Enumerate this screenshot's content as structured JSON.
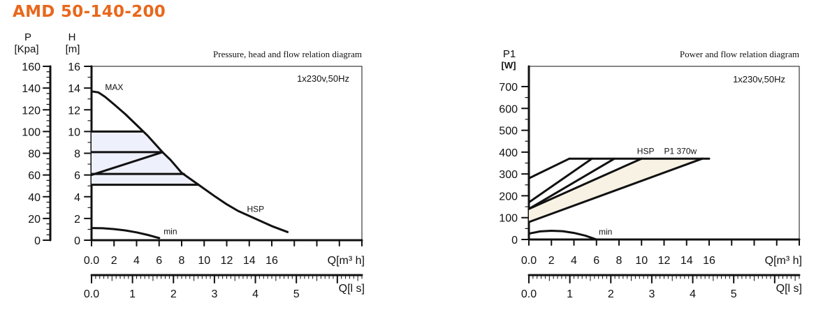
{
  "page": {
    "title": "AMD 50-140-200"
  },
  "chart_data": [
    {
      "type": "line",
      "title": "Pressure, head and flow relation diagram",
      "note": "1x230v,50Hz",
      "ylabel_pressure": {
        "name": "P",
        "unit": "[Kpa]"
      },
      "ylabel_head": {
        "name": "H",
        "unit": "[m]"
      },
      "xlabel_flow_m3h": "Q[m³ h]",
      "xlabel_flow_ls": "Q[l s]",
      "pressure_ticks": [
        "160",
        "140",
        "120",
        "100",
        "80",
        "60",
        "40",
        "20",
        "0"
      ],
      "head_ticks": [
        "16",
        "14",
        "12",
        "10",
        "8",
        "6",
        "4",
        "2",
        "0"
      ],
      "q_m3h_ticks": [
        "0.0",
        "2",
        "4",
        "6",
        "8",
        "10",
        "12",
        "14",
        "16"
      ],
      "q_ls_ticks": [
        "0.0",
        "1",
        "2",
        "3",
        "4",
        "5"
      ],
      "ylim": [
        0,
        16
      ],
      "xlim": [
        0,
        24
      ],
      "series": [
        {
          "name": "MAX",
          "x": [
            0,
            0.6,
            1.2,
            2,
            3,
            4,
            5,
            6.3,
            7,
            8,
            9.5
          ],
          "y": [
            13.7,
            13.6,
            13.2,
            12.5,
            11.6,
            10.6,
            9.6,
            8.1,
            7.4,
            6.2,
            5.1
          ]
        },
        {
          "name": "HSP",
          "x": [
            9.5,
            11,
            12,
            13,
            14.5,
            16,
            17.4
          ],
          "y": [
            5.1,
            4,
            3.3,
            2.7,
            2,
            1.3,
            0.75
          ]
        },
        {
          "name": "min",
          "x": [
            0,
            1,
            2,
            3,
            4,
            5,
            6
          ],
          "y": [
            1.12,
            1.1,
            1.02,
            0.9,
            0.72,
            0.48,
            0.2
          ]
        }
      ],
      "constant_pressure_lines": [
        {
          "x": [
            0,
            4.5
          ],
          "y": [
            10,
            10
          ]
        },
        {
          "x": [
            0,
            6.3
          ],
          "y": [
            8.1,
            8.1
          ]
        },
        {
          "x": [
            0,
            8.2
          ],
          "y": [
            6.1,
            6.1
          ]
        },
        {
          "x": [
            0,
            9.5
          ],
          "y": [
            5.1,
            5.1
          ]
        }
      ],
      "proportional_pressure_line": {
        "x": [
          0,
          6.3
        ],
        "y": [
          6,
          8.1
        ]
      },
      "labels": {
        "max": "MAX",
        "hsp": "HSP",
        "min": "min"
      }
    },
    {
      "type": "line",
      "title": "Power and flow relation diagram",
      "note": "1x230v,50Hz",
      "ylabel": {
        "name": "P1",
        "unit": "[W]"
      },
      "xlabel_flow_m3h": "Q[m³ h]",
      "xlabel_flow_ls": "Q[l s]",
      "power_ticks": [
        "700",
        "600",
        "500",
        "400",
        "300",
        "200",
        "100",
        "0"
      ],
      "q_m3h_ticks": [
        "0.0",
        "2",
        "4",
        "6",
        "8",
        "10",
        "12",
        "14",
        "16"
      ],
      "q_ls_ticks": [
        "0.0",
        "1",
        "2",
        "3",
        "4",
        "5"
      ],
      "ylim": [
        0,
        700
      ],
      "xlim": [
        0,
        24
      ],
      "series": [
        {
          "name": "P1 370w",
          "x": [
            3.6,
            16
          ],
          "y": [
            370,
            370
          ]
        },
        {
          "name": "min",
          "x": [
            0,
            1,
            2,
            3,
            4,
            5,
            6
          ],
          "y": [
            27,
            37,
            40,
            38,
            30,
            18,
            0
          ]
        }
      ],
      "rising_lines": [
        {
          "x": [
            0,
            3.6
          ],
          "y": [
            280,
            370
          ]
        },
        {
          "x": [
            0,
            5.6
          ],
          "y": [
            170,
            370
          ]
        },
        {
          "x": [
            0,
            7.6
          ],
          "y": [
            140,
            370
          ]
        },
        {
          "x": [
            0,
            10
          ],
          "y": [
            140,
            370
          ]
        },
        {
          "x": [
            0,
            15.4
          ],
          "y": [
            80,
            370
          ]
        }
      ],
      "labels": {
        "hsp": "HSP",
        "p1": "P1 370w",
        "min": "min"
      }
    }
  ]
}
